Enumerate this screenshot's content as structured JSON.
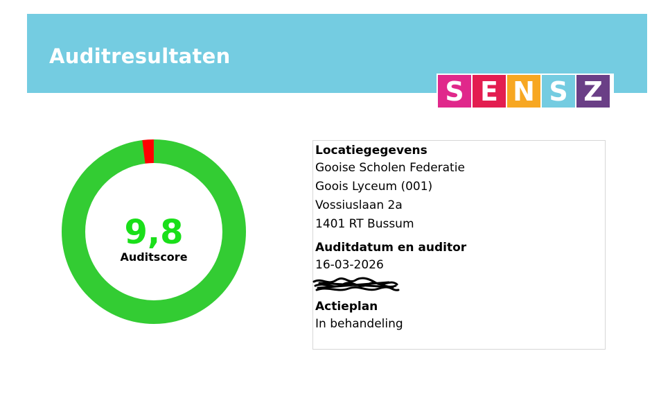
{
  "header": {
    "title": "Auditresultaten",
    "band_color": "#74cce1"
  },
  "logo": {
    "letters": [
      {
        "char": "S",
        "color": "#e0288b"
      },
      {
        "char": "E",
        "color": "#e31d50"
      },
      {
        "char": "N",
        "color": "#f7a722"
      },
      {
        "char": "S",
        "color": "#74cce1"
      },
      {
        "char": "Z",
        "color": "#6a3f86"
      }
    ]
  },
  "score": {
    "value": "9,8",
    "label": "Auditscore",
    "fraction_green": 0.98,
    "green_color": "#33cc33",
    "red_color": "#ff0000",
    "value_color": "#1adf1a"
  },
  "details": {
    "location_heading": "Locatiegegevens",
    "location_lines": [
      "Gooise Scholen Federatie",
      "Goois Lyceum (001)",
      "Vossiuslaan 2a",
      "1401 RT Bussum"
    ],
    "audit_heading": "Auditdatum en auditor",
    "audit_date": "16-03-2026",
    "action_heading": "Actieplan",
    "action_status": "In behandeling"
  }
}
